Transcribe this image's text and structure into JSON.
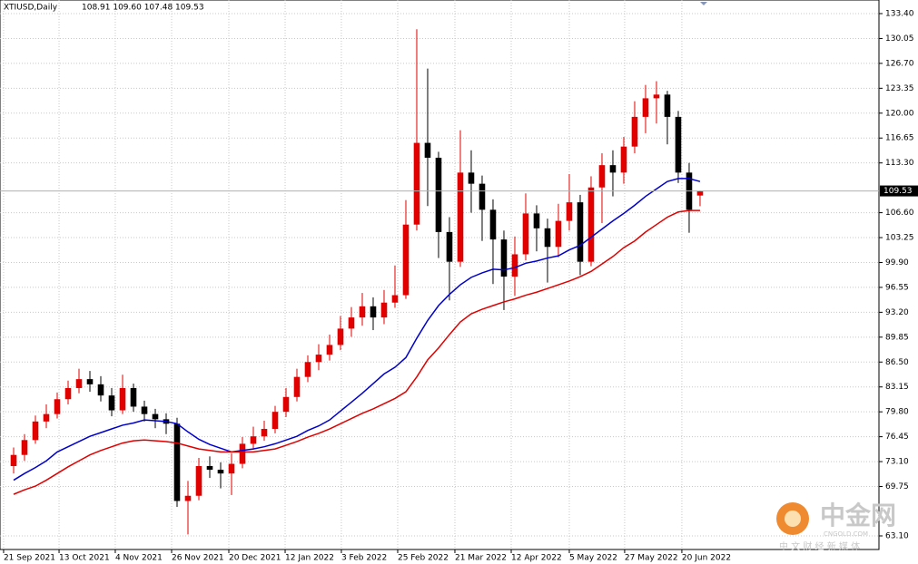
{
  "chart_data": {
    "type": "candlestick",
    "title": "XTIUSD,Daily",
    "ohlc_label": "108.91 109.60 107.48 109.53",
    "up_color": "#e00000",
    "down_color": "#000000",
    "candles": {
      "open": [
        72.5,
        74,
        76,
        78.5,
        79.5,
        81.5,
        83,
        84.2,
        83.5,
        82,
        80,
        83,
        80.5,
        79.5,
        78.8,
        78.2,
        67.8,
        68.5,
        72.5,
        72,
        71.5,
        72.8,
        75.5,
        76.5,
        77.5,
        79.8,
        81.8,
        84.5,
        86.5,
        87.5,
        88.8,
        91,
        92.5,
        94,
        92.5,
        94.5,
        95.5,
        105,
        116,
        114,
        104,
        100,
        112,
        110.5,
        107,
        103,
        98,
        101,
        106.5,
        104.5,
        102,
        105.5,
        108,
        100,
        110,
        113,
        112,
        115.5,
        119.5,
        122,
        122.5,
        119.5,
        112,
        108.91
      ],
      "high": [
        75,
        76.8,
        79.3,
        80.8,
        82.4,
        84,
        85.6,
        85.3,
        84.6,
        83,
        84.8,
        83.6,
        81.3,
        80.2,
        79.6,
        79,
        70.5,
        73.6,
        73.8,
        73,
        74.2,
        76.4,
        77.8,
        78.6,
        80.6,
        83,
        85.6,
        87.4,
        88.9,
        90.2,
        92.7,
        93.9,
        95.8,
        95.2,
        96.2,
        99.5,
        108.3,
        131.3,
        126,
        114.8,
        106,
        117.7,
        115,
        111.6,
        108.4,
        104.2,
        103.4,
        109.2,
        107.6,
        105.8,
        107.8,
        111.8,
        109,
        111.5,
        114.6,
        115,
        116.8,
        121.6,
        123.8,
        124.3,
        123,
        120.3,
        113.3,
        109.6
      ],
      "low": [
        71.5,
        73.2,
        75.5,
        77.6,
        78.9,
        80.8,
        82.3,
        82.5,
        81.2,
        79.2,
        79.5,
        79.8,
        78.5,
        77.6,
        76.8,
        67,
        63.3,
        67.9,
        70.9,
        69.5,
        68.6,
        72.2,
        74.8,
        75.9,
        76.9,
        79.1,
        81.2,
        83.8,
        85.4,
        86.7,
        88.1,
        89.9,
        91.4,
        90.8,
        91.6,
        93.8,
        95,
        104.2,
        107.5,
        100.5,
        94.8,
        99.3,
        106.6,
        102.8,
        97,
        93.5,
        95.4,
        100.2,
        101.4,
        97.2,
        100.6,
        104.2,
        98.2,
        99.4,
        105.2,
        108.8,
        110.5,
        114.6,
        117.3,
        118.6,
        115.8,
        110.6,
        103.9,
        107.48
      ],
      "close": [
        74,
        76,
        78.5,
        79.5,
        81.5,
        83,
        84.2,
        83.5,
        82,
        80,
        83,
        80.5,
        79.5,
        78.8,
        78.2,
        67.8,
        68.5,
        72.5,
        72,
        71.5,
        72.8,
        75.5,
        76.5,
        77.5,
        79.8,
        81.8,
        84.5,
        86.5,
        87.5,
        88.8,
        91,
        92.5,
        94,
        92.5,
        94.5,
        95.5,
        105,
        116,
        114,
        104,
        100,
        112,
        110.5,
        107,
        103,
        98,
        101,
        106.5,
        104.5,
        102,
        105.5,
        108,
        100,
        110,
        113,
        112,
        115.5,
        119.5,
        122,
        122.5,
        119.5,
        112,
        107,
        109.53
      ]
    },
    "series": [
      {
        "color": "#0000cc",
        "values": [
          70.6,
          71.5,
          72.3,
          73.2,
          74.4,
          75.1,
          75.8,
          76.5,
          77,
          77.5,
          78,
          78.3,
          78.7,
          78.6,
          78.5,
          78.2,
          77.1,
          76.1,
          75.4,
          74.9,
          74.4,
          74.6,
          74.8,
          75.1,
          75.5,
          76,
          76.5,
          77.3,
          77.9,
          78.7,
          79.9,
          81.1,
          82.3,
          83.6,
          84.9,
          85.8,
          87.1,
          89.7,
          92.1,
          94.1,
          95.6,
          96.9,
          97.9,
          98.5,
          99,
          98.9,
          99.2,
          99.8,
          100.1,
          100.5,
          100.8,
          101.6,
          102.2,
          103.3,
          104.4,
          105.5,
          106.5,
          107.6,
          108.8,
          109.8,
          110.8,
          111.2,
          111.2,
          110.8
        ]
      },
      {
        "color": "#e00000",
        "values": [
          68.7,
          69.3,
          69.8,
          70.6,
          71.5,
          72.4,
          73.2,
          74,
          74.6,
          75.1,
          75.6,
          75.9,
          76,
          75.9,
          75.8,
          75.6,
          75.2,
          74.8,
          74.6,
          74.4,
          74.4,
          74.4,
          74.4,
          74.6,
          74.8,
          75.3,
          75.8,
          76.4,
          76.9,
          77.5,
          78.2,
          78.9,
          79.6,
          80.2,
          80.9,
          81.6,
          82.5,
          84.5,
          86.8,
          88.4,
          90.2,
          91.9,
          93,
          93.6,
          94.1,
          94.6,
          95,
          95.5,
          95.9,
          96.4,
          96.9,
          97.4,
          98,
          98.7,
          99.7,
          100.7,
          101.9,
          102.8,
          104,
          105,
          106,
          106.7,
          106.9,
          106.9
        ]
      }
    ],
    "current_price": 109.53,
    "xlim": [
      -1.25,
      79.42
    ],
    "ylim": [
      61.27,
      135.23
    ],
    "xticks": [
      {
        "value": -0.92,
        "label": "21 Sep 2021"
      },
      {
        "value": 4.17,
        "label": "13 Oct 2021"
      },
      {
        "value": 9.33,
        "label": "4 Nov 2021"
      },
      {
        "value": 14.5,
        "label": "26 Nov 2021"
      },
      {
        "value": 19.75,
        "label": "20 Dec 2021"
      },
      {
        "value": 24.92,
        "label": "12 Jan 2022"
      },
      {
        "value": 30.08,
        "label": "3 Feb 2022"
      },
      {
        "value": 35.25,
        "label": "25 Feb 2022"
      },
      {
        "value": 40.5,
        "label": "21 Mar 2022"
      },
      {
        "value": 45.67,
        "label": "12 Apr 2022"
      },
      {
        "value": 51,
        "label": "5 May 2022"
      },
      {
        "value": 56.08,
        "label": "27 May 2022"
      },
      {
        "value": 61.33,
        "label": "20 Jun 2022"
      }
    ],
    "yticks": [
      {
        "value": 133.4,
        "label": "133.40"
      },
      130.05,
      {
        "value": 126.7,
        "label": "126.70"
      },
      123.35,
      {
        "value": 120,
        "label": "120.00"
      },
      116.65,
      {
        "value": 113.3,
        "label": "113.30"
      },
      {
        "value": 106.6,
        "label": "106.60"
      },
      103.25,
      {
        "value": 99.9,
        "label": "99.90"
      },
      96.55,
      {
        "value": 93.2,
        "label": "93.20"
      },
      89.85,
      {
        "value": 86.5,
        "label": "86.50"
      },
      83.15,
      {
        "value": 79.8,
        "label": "79.80"
      },
      76.45,
      {
        "value": 73.1,
        "label": "73.10"
      },
      69.75,
      {
        "value": 63.1,
        "label": "63.10"
      }
    ],
    "grid": true
  },
  "watermark": {
    "brand": "中金网",
    "domain": "CNGOLD.COM",
    "tagline": "中 文 财 经 新 媒 体"
  }
}
